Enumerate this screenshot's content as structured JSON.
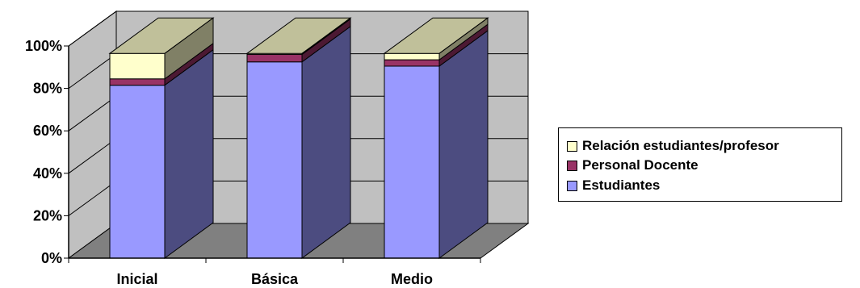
{
  "chart_data": {
    "type": "bar",
    "stacked": "percent",
    "three_d": true,
    "categories": [
      "Inicial",
      "Básica",
      "Medio"
    ],
    "series": [
      {
        "name": "Estudiantes",
        "values": [
          81.5,
          92.5,
          90.5
        ],
        "color": "#9999ff"
      },
      {
        "name": "Personal Docente",
        "values": [
          3.0,
          3.5,
          3.0
        ],
        "color": "#993366"
      },
      {
        "name": "Relación estudiantes/profesor",
        "values": [
          12.0,
          0.5,
          3.0
        ],
        "color": "#ffffcc"
      }
    ],
    "y_ticks": [
      "0%",
      "20%",
      "40%",
      "60%",
      "80%",
      "100%"
    ],
    "ylim": [
      0,
      100
    ],
    "grid": true,
    "legend_position": "right",
    "wall_color": "#c0c0c0",
    "floor_color": "#808080"
  },
  "legend": {
    "items": [
      {
        "label": "Relación estudiantes/profesor",
        "color": "#ffffcc"
      },
      {
        "label": "Personal Docente",
        "color": "#993366"
      },
      {
        "label": "Estudiantes",
        "color": "#9999ff"
      }
    ]
  }
}
